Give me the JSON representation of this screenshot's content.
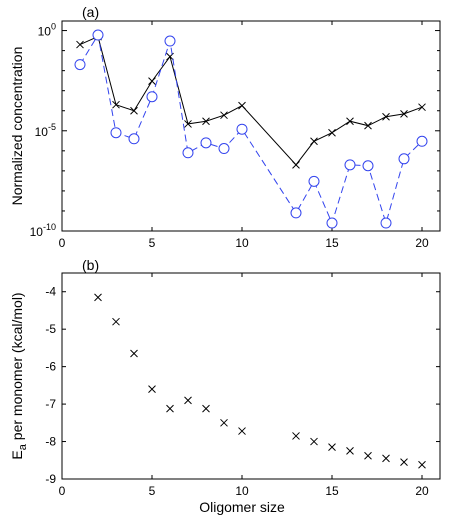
{
  "chart_data": [
    {
      "type": "line",
      "panel_label": "(a)",
      "xlabel": "",
      "ylabel": "Normalized concentration",
      "yscale": "log",
      "xlim": [
        0,
        21
      ],
      "ylim": [
        1e-10,
        3
      ],
      "xticks": [
        "0",
        "5",
        "10",
        "15",
        "20"
      ],
      "yticks": [
        {
          "base": "10",
          "exp": "0"
        },
        {
          "base": "10",
          "exp": "-5"
        },
        {
          "base": "10",
          "exp": "-10"
        }
      ],
      "grid": false,
      "series": [
        {
          "marker": "x",
          "linestyle": "solid",
          "color": "#000000",
          "x": [
            1,
            2,
            3,
            4,
            5,
            6,
            7,
            8,
            9,
            10,
            13,
            14,
            15,
            16,
            17,
            18,
            19,
            20
          ],
          "y": [
            0.2,
            0.5,
            0.0002,
            0.0001,
            0.003,
            0.05,
            2.2e-05,
            3e-05,
            6e-05,
            0.00018,
            2e-07,
            3e-06,
            8e-06,
            3e-05,
            1.8e-05,
            5e-05,
            7e-05,
            0.00015
          ]
        },
        {
          "marker": "o",
          "linestyle": "dashed",
          "color": "#3344ee",
          "x": [
            1,
            2,
            3,
            4,
            5,
            6,
            7,
            8,
            9,
            10,
            13,
            14,
            15,
            16,
            17,
            18,
            19,
            20
          ],
          "y": [
            0.02,
            0.6,
            8e-06,
            4e-06,
            0.0005,
            0.3,
            8e-07,
            2.5e-06,
            1.3e-06,
            1.2e-05,
            8e-10,
            3e-08,
            2.5e-10,
            2e-07,
            1.8e-07,
            2.5e-10,
            4e-07,
            3e-06
          ]
        }
      ]
    },
    {
      "type": "scatter",
      "panel_label": "(b)",
      "xlabel": "Oligomer size",
      "ylabel": "E",
      "ylabel_sub": "a",
      "ylabel_rest": " per monomer (kcal/mol)",
      "xlim": [
        0,
        21
      ],
      "ylim": [
        -9,
        -3.5
      ],
      "xticks": [
        "0",
        "5",
        "10",
        "15",
        "20"
      ],
      "yticks": [
        "-4",
        "-5",
        "-6",
        "-7",
        "-8",
        "-9"
      ],
      "grid": false,
      "series": [
        {
          "marker": "x",
          "color": "#000000",
          "x": [
            2,
            3,
            4,
            5,
            6,
            7,
            8,
            9,
            10,
            13,
            14,
            15,
            16,
            17,
            18,
            19,
            20
          ],
          "y": [
            -4.15,
            -4.8,
            -5.65,
            -6.6,
            -7.12,
            -6.9,
            -7.12,
            -7.5,
            -7.72,
            -7.85,
            -8.0,
            -8.15,
            -8.25,
            -8.38,
            -8.45,
            -8.55,
            -8.62
          ]
        }
      ]
    }
  ]
}
